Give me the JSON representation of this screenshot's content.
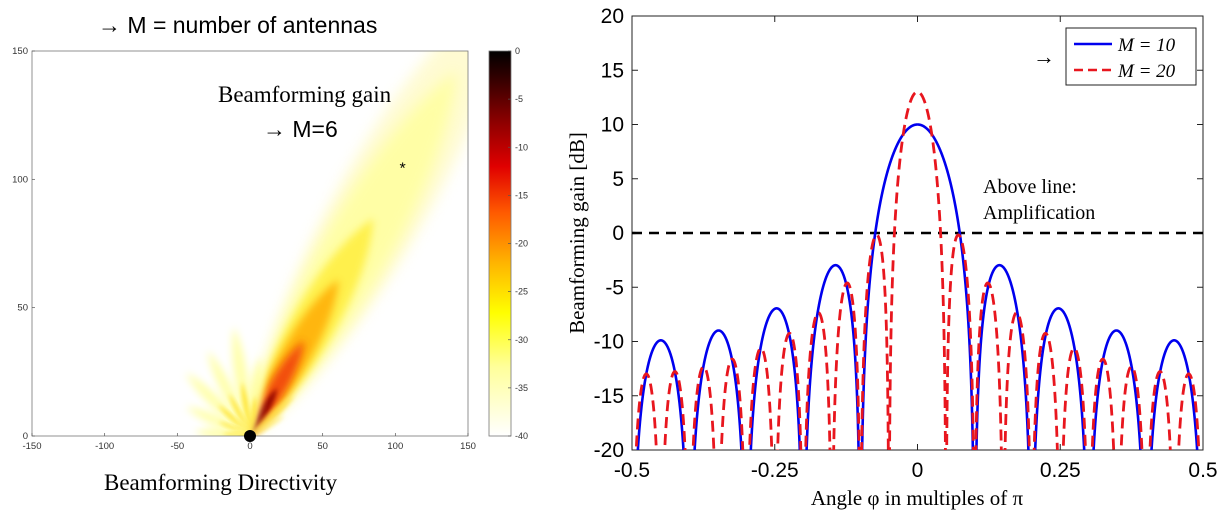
{
  "header_note": "→ M = number of antennas",
  "chart_data": [
    {
      "type": "heatmap",
      "caption": "Beamforming Directivity",
      "annotation": "Beamforming gain",
      "annotation_sub": "→ M=6",
      "xlim": [
        -150,
        150
      ],
      "ylim": [
        0,
        150
      ],
      "xticks": [
        "-150",
        "-100",
        "-50",
        "0",
        "50",
        "100",
        "150"
      ],
      "yticks": [
        "0",
        "50",
        "100",
        "150"
      ],
      "colorbar": {
        "min": -40,
        "max": 0,
        "ticks": [
          "0",
          "-5",
          "-10",
          "-15",
          "-20",
          "-25",
          "-30",
          "-35",
          "-40"
        ]
      },
      "source_point": {
        "x": 0,
        "y": 0
      },
      "target_point": {
        "x": 105,
        "y": 105
      },
      "M": 6
    },
    {
      "type": "line",
      "xlabel": "Angle φ in multiples of π",
      "ylabel": "Beamforming gain [dB]",
      "xlim": [
        -0.5,
        0.5
      ],
      "ylim": [
        -20,
        20
      ],
      "xticks": [
        "-0.5",
        "-0.25",
        "0",
        "0.25",
        "0.5"
      ],
      "yticks": [
        "20",
        "15",
        "10",
        "5",
        "0",
        "-5",
        "-10",
        "-15",
        "-20"
      ],
      "legend_arrow": "→",
      "legend_position": "top-right",
      "annotation_line1": "Above line:",
      "annotation_line2": "Amplification",
      "threshold_db": 0,
      "series": [
        {
          "name": "M = 10",
          "M": 10,
          "color": "#0000ee",
          "style": "solid"
        },
        {
          "name": "M = 20",
          "M": 20,
          "color": "#e8161e",
          "style": "dashed"
        }
      ]
    }
  ]
}
